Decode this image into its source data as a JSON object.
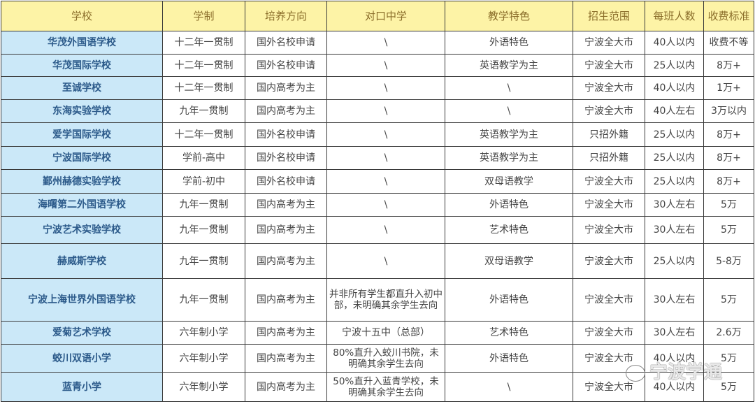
{
  "headers": [
    "学校",
    "学制",
    "培养方向",
    "对口中学",
    "教学特色",
    "招生范围",
    "每班人数",
    "收费标准"
  ],
  "rows": [
    [
      "华茂外国语学校",
      "十二年一贯制",
      "国外名校申请",
      "\\",
      "外语特色",
      "宁波全大市",
      "40人以内",
      "收费不等"
    ],
    [
      "华茂国际学校",
      "十二年一贯制",
      "国外名校申请",
      "\\",
      "英语教学为主",
      "宁波全大市",
      "25人以内",
      "8万+"
    ],
    [
      "至诚学校",
      "十二年一贯制",
      "国内高考为主",
      "\\",
      "\\",
      "宁波全大市",
      "40人以内",
      "1万+"
    ],
    [
      "东海实验学校",
      "九年一贯制",
      "国内高考为主",
      "\\",
      "\\",
      "宁波全大市",
      "40人左右",
      "3万以内"
    ],
    [
      "爱学国际学校",
      "十二年一贯制",
      "国外名校申请",
      "\\",
      "英语教学为主",
      "只招外籍",
      "25人以内",
      "8万+"
    ],
    [
      "宁波国际学校",
      "学前-高中",
      "国外名校申请",
      "\\",
      "英语教学为主",
      "只招外籍",
      "25人以内",
      "8万+"
    ],
    [
      "鄞州赫德实验学校",
      "学前-初中",
      "国外名校申请",
      "\\",
      "双母语教学",
      "宁波全大市",
      "25人以内",
      "8万+"
    ],
    [
      "海曙第二外国语学校",
      "九年一贯制",
      "国内高考为主",
      "\\",
      "外语特色",
      "宁波全大市",
      "30人左右",
      "5万"
    ],
    [
      "宁波艺术实验学校",
      "九年一贯制",
      "国内高考为主",
      "\\",
      "艺术特色",
      "宁波全大市",
      "30人左右",
      "5万"
    ],
    [
      "赫威斯学校",
      "九年一贯制",
      "国内高考为主",
      "\\",
      "双母语教学",
      "宁波全大市",
      "25人以内",
      "5-8万"
    ],
    [
      "宁波上海世界外国语学校",
      "九年一贯制",
      "国内高考为主",
      "并非所有学生都直升入初中部，未明确其余学生去向",
      "外语特色",
      "宁波全大市",
      "30人左右",
      "5万"
    ],
    [
      "爱菊艺术学校",
      "六年制小学",
      "国内高考为主",
      "宁波十五中（总部）",
      "艺术特色",
      "宁波全大市",
      "30人左右",
      "2.6万"
    ],
    [
      "蛟川双语小学",
      "六年制小学",
      "国内高考为主",
      "80%直升入蛟川书院，未明确其余学生去向",
      "外语特色",
      "宁波全大市",
      "40人以内",
      "5万"
    ],
    [
      "蓝青小学",
      "六年制小学",
      "国内高考为主",
      "50%直升入蓝青学校，未明确其余学生去向",
      "\\",
      "宁波全大市",
      "40人以内",
      "5万"
    ]
  ],
  "watermark": "宁波学通"
}
